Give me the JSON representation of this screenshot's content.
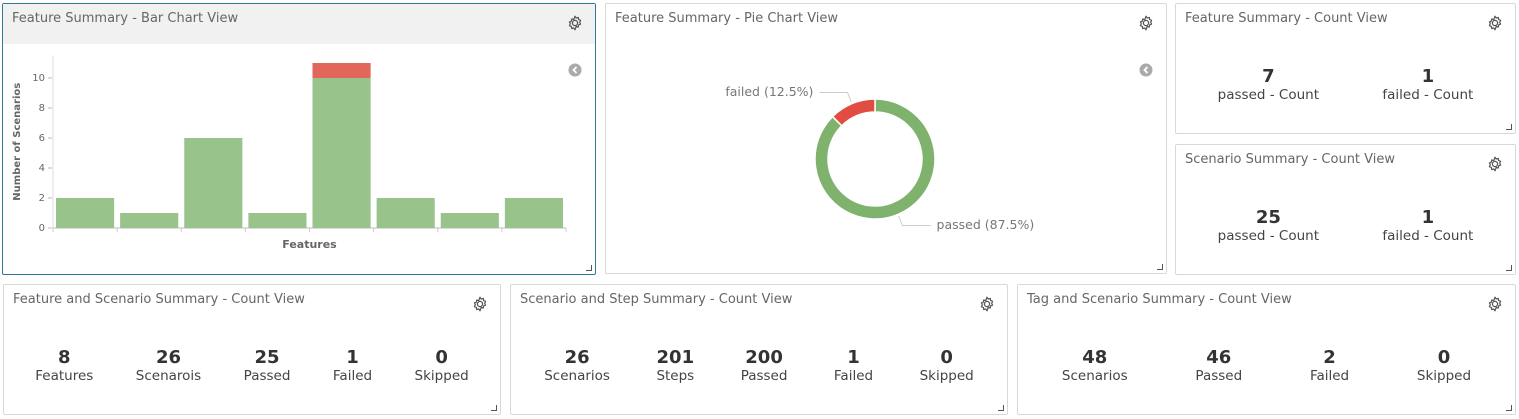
{
  "panels": [
    {
      "title": "Feature Summary - Bar Chart View",
      "chart_data": {
        "type": "bar",
        "stacked": true,
        "xlabel": "Features",
        "ylabel": "Number of Scenarios",
        "categories": [
          null,
          null,
          null,
          null,
          null,
          null,
          null,
          null
        ],
        "series": [
          {
            "name": "passed",
            "color": "#98c38a",
            "values": [
              2,
              1,
              6,
              1,
              10,
              2,
              1,
              2
            ]
          },
          {
            "name": "failed",
            "color": "#e3665b",
            "values": [
              0,
              0,
              0,
              0,
              1,
              0,
              0,
              0
            ]
          }
        ],
        "ylim": [
          0,
          11.5
        ],
        "yticks": [
          0,
          2,
          4,
          6,
          8,
          10
        ]
      }
    },
    {
      "title": "Feature Summary - Pie Chart View",
      "chart_data": {
        "type": "pie",
        "donut": true,
        "categories": [
          "passed",
          "failed"
        ],
        "values": [
          87.5,
          12.5
        ],
        "value_labels": [
          "passed (87.5%)",
          "failed (12.5%)"
        ],
        "colors": [
          "#7eb26d",
          "#e24d42"
        ]
      }
    },
    {
      "title": "Feature Summary - Count View",
      "items": [
        {
          "value": "7",
          "label": "passed - Count"
        },
        {
          "value": "1",
          "label": "failed - Count"
        }
      ]
    },
    {
      "title": "Scenario Summary - Count View",
      "items": [
        {
          "value": "25",
          "label": "passed - Count"
        },
        {
          "value": "1",
          "label": "failed - Count"
        }
      ]
    },
    {
      "title": "Feature and Scenario Summary - Count View",
      "items": [
        {
          "value": "8",
          "label": "Features"
        },
        {
          "value": "26",
          "label": "Scenarois"
        },
        {
          "value": "25",
          "label": "Passed"
        },
        {
          "value": "1",
          "label": "Failed"
        },
        {
          "value": "0",
          "label": "Skipped"
        }
      ]
    },
    {
      "title": "Scenario and Step Summary - Count View",
      "items": [
        {
          "value": "26",
          "label": "Scenarios"
        },
        {
          "value": "201",
          "label": "Steps"
        },
        {
          "value": "200",
          "label": "Passed"
        },
        {
          "value": "1",
          "label": "Failed"
        },
        {
          "value": "0",
          "label": "Skipped"
        }
      ]
    },
    {
      "title": "Tag and Scenario Summary - Count View",
      "items": [
        {
          "value": "48",
          "label": "Scenarios"
        },
        {
          "value": "46",
          "label": "Passed"
        },
        {
          "value": "2",
          "label": "Failed"
        },
        {
          "value": "0",
          "label": "Skipped"
        }
      ]
    }
  ]
}
